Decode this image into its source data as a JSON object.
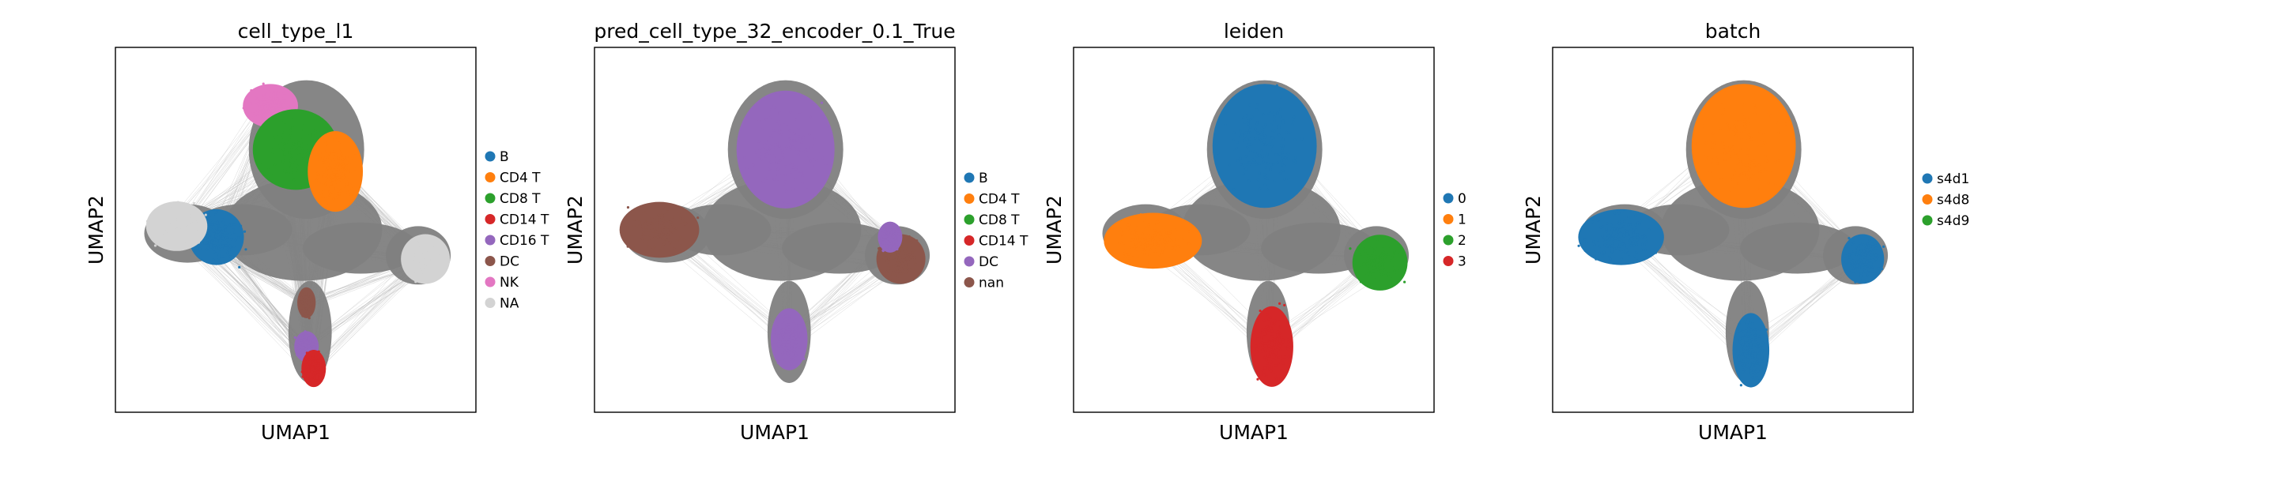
{
  "chart_data": [
    {
      "type": "scatter",
      "title": "cell_type_l1",
      "xlabel": "UMAP1",
      "ylabel": "UMAP2",
      "legend_position": "right",
      "background_color": "#808080",
      "legend": [
        {
          "label": "B",
          "color": "#1f77b4"
        },
        {
          "label": "CD4 T",
          "color": "#ff7f0e"
        },
        {
          "label": "CD8 T",
          "color": "#2ca02c"
        },
        {
          "label": "CD14 T",
          "color": "#d62728"
        },
        {
          "label": "CD16 T",
          "color": "#9467bd"
        },
        {
          "label": "DC",
          "color": "#8c564b"
        },
        {
          "label": "NK",
          "color": "#e377c2"
        },
        {
          "label": "NA",
          "color": "#d3d3d3"
        }
      ],
      "clusters": [
        {
          "label": "NK",
          "cx": 0.43,
          "cy": 0.84,
          "rx": 0.09,
          "ry": 0.07
        },
        {
          "label": "CD8 T",
          "cx": 0.5,
          "cy": 0.72,
          "rx": 0.14,
          "ry": 0.13
        },
        {
          "label": "CD4 T",
          "cx": 0.61,
          "cy": 0.66,
          "rx": 0.09,
          "ry": 0.13
        },
        {
          "label": "B",
          "cx": 0.28,
          "cy": 0.48,
          "rx": 0.09,
          "ry": 0.09
        },
        {
          "label": "NA",
          "cx": 0.17,
          "cy": 0.51,
          "rx": 0.1,
          "ry": 0.08
        },
        {
          "label": "NA",
          "cx": 0.86,
          "cy": 0.42,
          "rx": 0.08,
          "ry": 0.08
        },
        {
          "label": "DC",
          "cx": 0.53,
          "cy": 0.3,
          "rx": 0.03,
          "ry": 0.05
        },
        {
          "label": "CD16 T",
          "cx": 0.53,
          "cy": 0.18,
          "rx": 0.04,
          "ry": 0.05
        },
        {
          "label": "CD14 T",
          "cx": 0.55,
          "cy": 0.12,
          "rx": 0.04,
          "ry": 0.06
        }
      ]
    },
    {
      "type": "scatter",
      "title": "pred_cell_type_32_encoder_0.1_True",
      "xlabel": "UMAP1",
      "ylabel": "UMAP2",
      "legend_position": "right",
      "background_color": "#808080",
      "legend": [
        {
          "label": "B",
          "color": "#1f77b4"
        },
        {
          "label": "CD4 T",
          "color": "#ff7f0e"
        },
        {
          "label": "CD8 T",
          "color": "#2ca02c"
        },
        {
          "label": "CD14 T",
          "color": "#d62728"
        },
        {
          "label": "DC",
          "color": "#9467bd"
        },
        {
          "label": "nan",
          "color": "#8c564b"
        }
      ],
      "clusters": [
        {
          "label": "DC",
          "cx": 0.53,
          "cy": 0.72,
          "rx": 0.16,
          "ry": 0.19
        },
        {
          "label": "nan",
          "cx": 0.18,
          "cy": 0.5,
          "rx": 0.13,
          "ry": 0.09
        },
        {
          "label": "nan",
          "cx": 0.85,
          "cy": 0.42,
          "rx": 0.08,
          "ry": 0.08
        },
        {
          "label": "DC",
          "cx": 0.54,
          "cy": 0.2,
          "rx": 0.06,
          "ry": 0.1
        },
        {
          "label": "DC",
          "cx": 0.82,
          "cy": 0.48,
          "rx": 0.04,
          "ry": 0.05
        }
      ]
    },
    {
      "type": "scatter",
      "title": "leiden",
      "xlabel": "UMAP1",
      "ylabel": "UMAP2",
      "legend_position": "right",
      "background_color": "#808080",
      "legend": [
        {
          "label": "0",
          "color": "#1f77b4"
        },
        {
          "label": "1",
          "color": "#ff7f0e"
        },
        {
          "label": "2",
          "color": "#2ca02c"
        },
        {
          "label": "3",
          "color": "#d62728"
        }
      ],
      "clusters": [
        {
          "label": "0",
          "cx": 0.53,
          "cy": 0.73,
          "rx": 0.17,
          "ry": 0.2
        },
        {
          "label": "1",
          "cx": 0.22,
          "cy": 0.47,
          "rx": 0.16,
          "ry": 0.09
        },
        {
          "label": "2",
          "cx": 0.85,
          "cy": 0.41,
          "rx": 0.09,
          "ry": 0.09
        },
        {
          "label": "3",
          "cx": 0.55,
          "cy": 0.18,
          "rx": 0.07,
          "ry": 0.13
        }
      ]
    },
    {
      "type": "scatter",
      "title": "batch",
      "xlabel": "UMAP1",
      "ylabel": "UMAP2",
      "legend_position": "right",
      "background_color": "#808080",
      "legend": [
        {
          "label": "s4d1",
          "color": "#1f77b4"
        },
        {
          "label": "s4d8",
          "color": "#ff7f0e"
        },
        {
          "label": "s4d9",
          "color": "#2ca02c"
        }
      ],
      "clusters": [
        {
          "label": "s4d8",
          "cx": 0.53,
          "cy": 0.73,
          "rx": 0.17,
          "ry": 0.2
        },
        {
          "label": "s4d1",
          "cx": 0.19,
          "cy": 0.48,
          "rx": 0.14,
          "ry": 0.09
        },
        {
          "label": "s4d1",
          "cx": 0.86,
          "cy": 0.42,
          "rx": 0.07,
          "ry": 0.08
        },
        {
          "label": "s4d1",
          "cx": 0.55,
          "cy": 0.17,
          "rx": 0.06,
          "ry": 0.12
        }
      ]
    }
  ]
}
